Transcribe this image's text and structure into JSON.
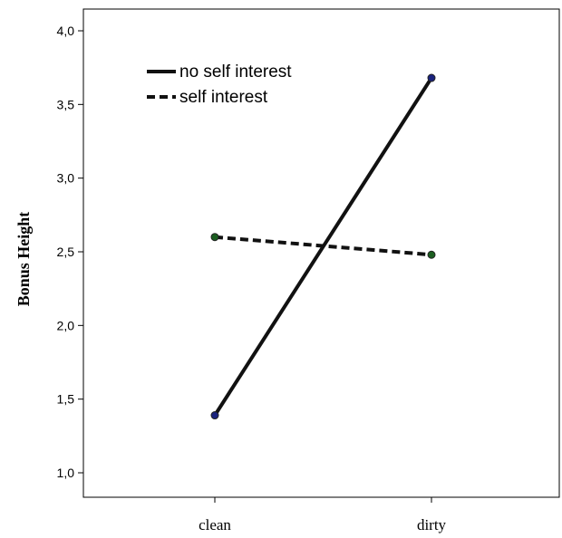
{
  "chart_data": {
    "type": "line",
    "title": "",
    "xlabel": "",
    "ylabel": "Bonus Height",
    "categories": [
      "clean",
      "dirty"
    ],
    "ylim": [
      0.9,
      4.2
    ],
    "yticks": [
      1.0,
      1.5,
      2.0,
      2.5,
      3.0,
      3.5,
      4.0
    ],
    "ytick_labels": [
      "1,0",
      "1,5",
      "2,0",
      "2,5",
      "3,0",
      "3,5",
      "4,0"
    ],
    "grid": false,
    "legend_position": "top-left",
    "series": [
      {
        "name": "no self interest",
        "values": [
          1.39,
          3.68
        ],
        "line_style": "solid",
        "marker_color": "#1a237e"
      },
      {
        "name": "self interest",
        "values": [
          2.6,
          2.48
        ],
        "line_style": "dashed",
        "marker_color": "#1b5e20"
      }
    ]
  }
}
